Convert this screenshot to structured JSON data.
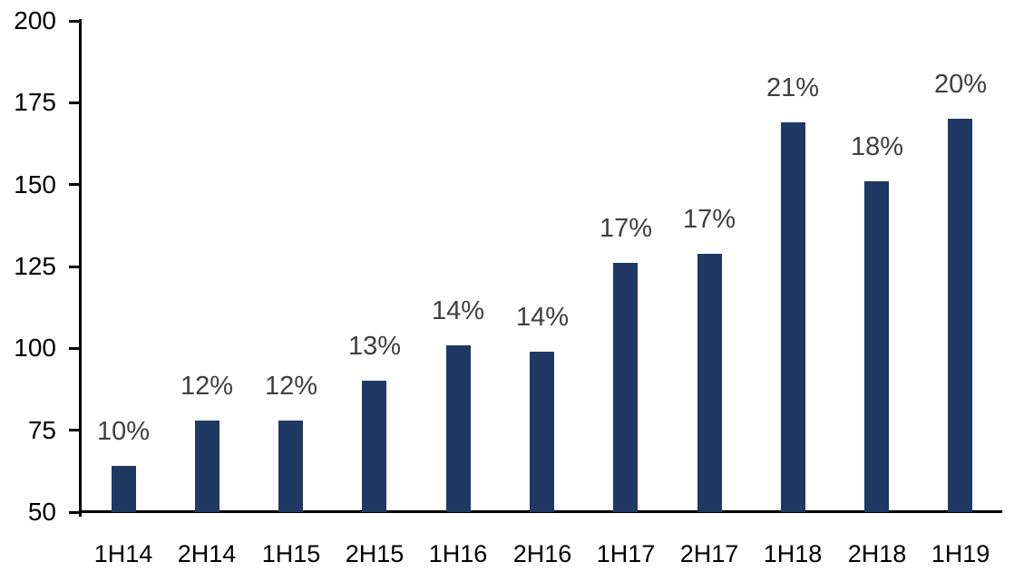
{
  "chart_data": {
    "type": "bar",
    "title": "",
    "xlabel": "",
    "ylabel": "",
    "categories": [
      "1H14",
      "2H14",
      "1H15",
      "2H15",
      "1H16",
      "2H16",
      "1H17",
      "2H17",
      "1H18",
      "2H18",
      "1H19"
    ],
    "values": [
      64,
      78,
      78,
      90,
      101,
      99,
      126,
      129,
      169,
      151,
      170
    ],
    "bar_labels": [
      "10%",
      "12%",
      "12%",
      "13%",
      "14%",
      "14%",
      "17%",
      "17%",
      "21%",
      "18%",
      "20%"
    ],
    "ylim": [
      50,
      200
    ],
    "yticks": [
      50,
      75,
      100,
      125,
      150,
      175,
      200
    ],
    "grid": false,
    "legend_position": "none"
  },
  "colors": {
    "bar": "#1F3864",
    "data_label": "#3F3F3F",
    "axis": "#000000",
    "background": "#FFFFFF"
  }
}
